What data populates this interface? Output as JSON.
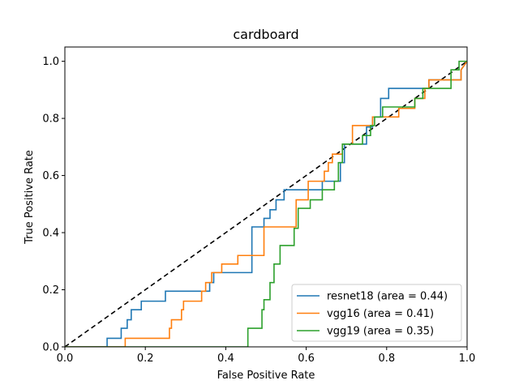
{
  "chart_data": {
    "type": "line",
    "title": "cardboard",
    "xlabel": "False Positive Rate",
    "ylabel": "True Positive Rate",
    "xlim": [
      0.0,
      1.0
    ],
    "ylim": [
      0.0,
      1.05
    ],
    "x_ticks": [
      "0.0",
      "0.2",
      "0.4",
      "0.6",
      "0.8",
      "1.0"
    ],
    "y_ticks": [
      "0.0",
      "0.2",
      "0.4",
      "0.6",
      "0.8",
      "1.0"
    ],
    "grid": false,
    "legend_position": "lower-right",
    "reference_line": {
      "x": [
        0,
        1
      ],
      "y": [
        0,
        1
      ],
      "color": "#000000",
      "style": "dashed"
    },
    "series": [
      {
        "name": "resnet18 (area = 0.44)",
        "color": "#1f77b4",
        "x": [
          0.0,
          0.105,
          0.105,
          0.14,
          0.14,
          0.155,
          0.155,
          0.165,
          0.165,
          0.19,
          0.19,
          0.25,
          0.25,
          0.36,
          0.36,
          0.37,
          0.37,
          0.465,
          0.465,
          0.495,
          0.495,
          0.51,
          0.51,
          0.525,
          0.525,
          0.545,
          0.545,
          0.64,
          0.64,
          0.685,
          0.685,
          0.695,
          0.695,
          0.75,
          0.75,
          0.765,
          0.765,
          0.785,
          0.785,
          0.805,
          0.805,
          0.905,
          0.905,
          0.985,
          0.985,
          1.0
        ],
        "y": [
          0.0,
          0.0,
          0.03,
          0.03,
          0.065,
          0.065,
          0.095,
          0.095,
          0.13,
          0.13,
          0.16,
          0.16,
          0.195,
          0.195,
          0.225,
          0.225,
          0.26,
          0.26,
          0.42,
          0.42,
          0.45,
          0.45,
          0.48,
          0.48,
          0.515,
          0.515,
          0.55,
          0.55,
          0.58,
          0.58,
          0.645,
          0.645,
          0.71,
          0.71,
          0.77,
          0.77,
          0.805,
          0.805,
          0.87,
          0.87,
          0.905,
          0.905,
          0.935,
          0.935,
          0.97,
          1.0
        ]
      },
      {
        "name": "vgg16 (area = 0.41)",
        "color": "#ff7f0e",
        "x": [
          0.0,
          0.15,
          0.15,
          0.26,
          0.26,
          0.265,
          0.265,
          0.29,
          0.29,
          0.295,
          0.295,
          0.34,
          0.34,
          0.35,
          0.35,
          0.365,
          0.365,
          0.39,
          0.39,
          0.43,
          0.43,
          0.495,
          0.495,
          0.575,
          0.575,
          0.605,
          0.605,
          0.645,
          0.645,
          0.655,
          0.655,
          0.665,
          0.665,
          0.69,
          0.69,
          0.715,
          0.715,
          0.765,
          0.765,
          0.83,
          0.83,
          0.87,
          0.87,
          0.895,
          0.895,
          0.905,
          0.905,
          0.985,
          0.985,
          1.0
        ],
        "y": [
          0.0,
          0.0,
          0.03,
          0.03,
          0.065,
          0.065,
          0.095,
          0.095,
          0.13,
          0.13,
          0.16,
          0.16,
          0.195,
          0.195,
          0.225,
          0.225,
          0.26,
          0.26,
          0.29,
          0.29,
          0.32,
          0.32,
          0.42,
          0.42,
          0.515,
          0.515,
          0.58,
          0.58,
          0.615,
          0.615,
          0.645,
          0.645,
          0.675,
          0.675,
          0.71,
          0.71,
          0.775,
          0.775,
          0.805,
          0.805,
          0.835,
          0.835,
          0.87,
          0.87,
          0.905,
          0.905,
          0.935,
          0.935,
          0.97,
          1.0
        ]
      },
      {
        "name": "vgg19 (area = 0.35)",
        "color": "#2ca02c",
        "x": [
          0.0,
          0.455,
          0.455,
          0.49,
          0.49,
          0.495,
          0.495,
          0.51,
          0.51,
          0.52,
          0.52,
          0.535,
          0.535,
          0.57,
          0.57,
          0.58,
          0.58,
          0.61,
          0.61,
          0.64,
          0.64,
          0.67,
          0.67,
          0.68,
          0.68,
          0.69,
          0.69,
          0.74,
          0.74,
          0.76,
          0.76,
          0.77,
          0.77,
          0.79,
          0.79,
          0.87,
          0.87,
          0.89,
          0.89,
          0.96,
          0.96,
          0.98,
          0.98,
          1.0
        ],
        "y": [
          0.0,
          0.0,
          0.065,
          0.065,
          0.13,
          0.13,
          0.165,
          0.165,
          0.225,
          0.225,
          0.29,
          0.29,
          0.355,
          0.355,
          0.415,
          0.415,
          0.485,
          0.485,
          0.515,
          0.515,
          0.55,
          0.55,
          0.58,
          0.58,
          0.645,
          0.645,
          0.71,
          0.71,
          0.74,
          0.74,
          0.775,
          0.775,
          0.805,
          0.805,
          0.84,
          0.84,
          0.87,
          0.87,
          0.905,
          0.905,
          0.97,
          0.97,
          1.0,
          1.0
        ]
      }
    ]
  }
}
